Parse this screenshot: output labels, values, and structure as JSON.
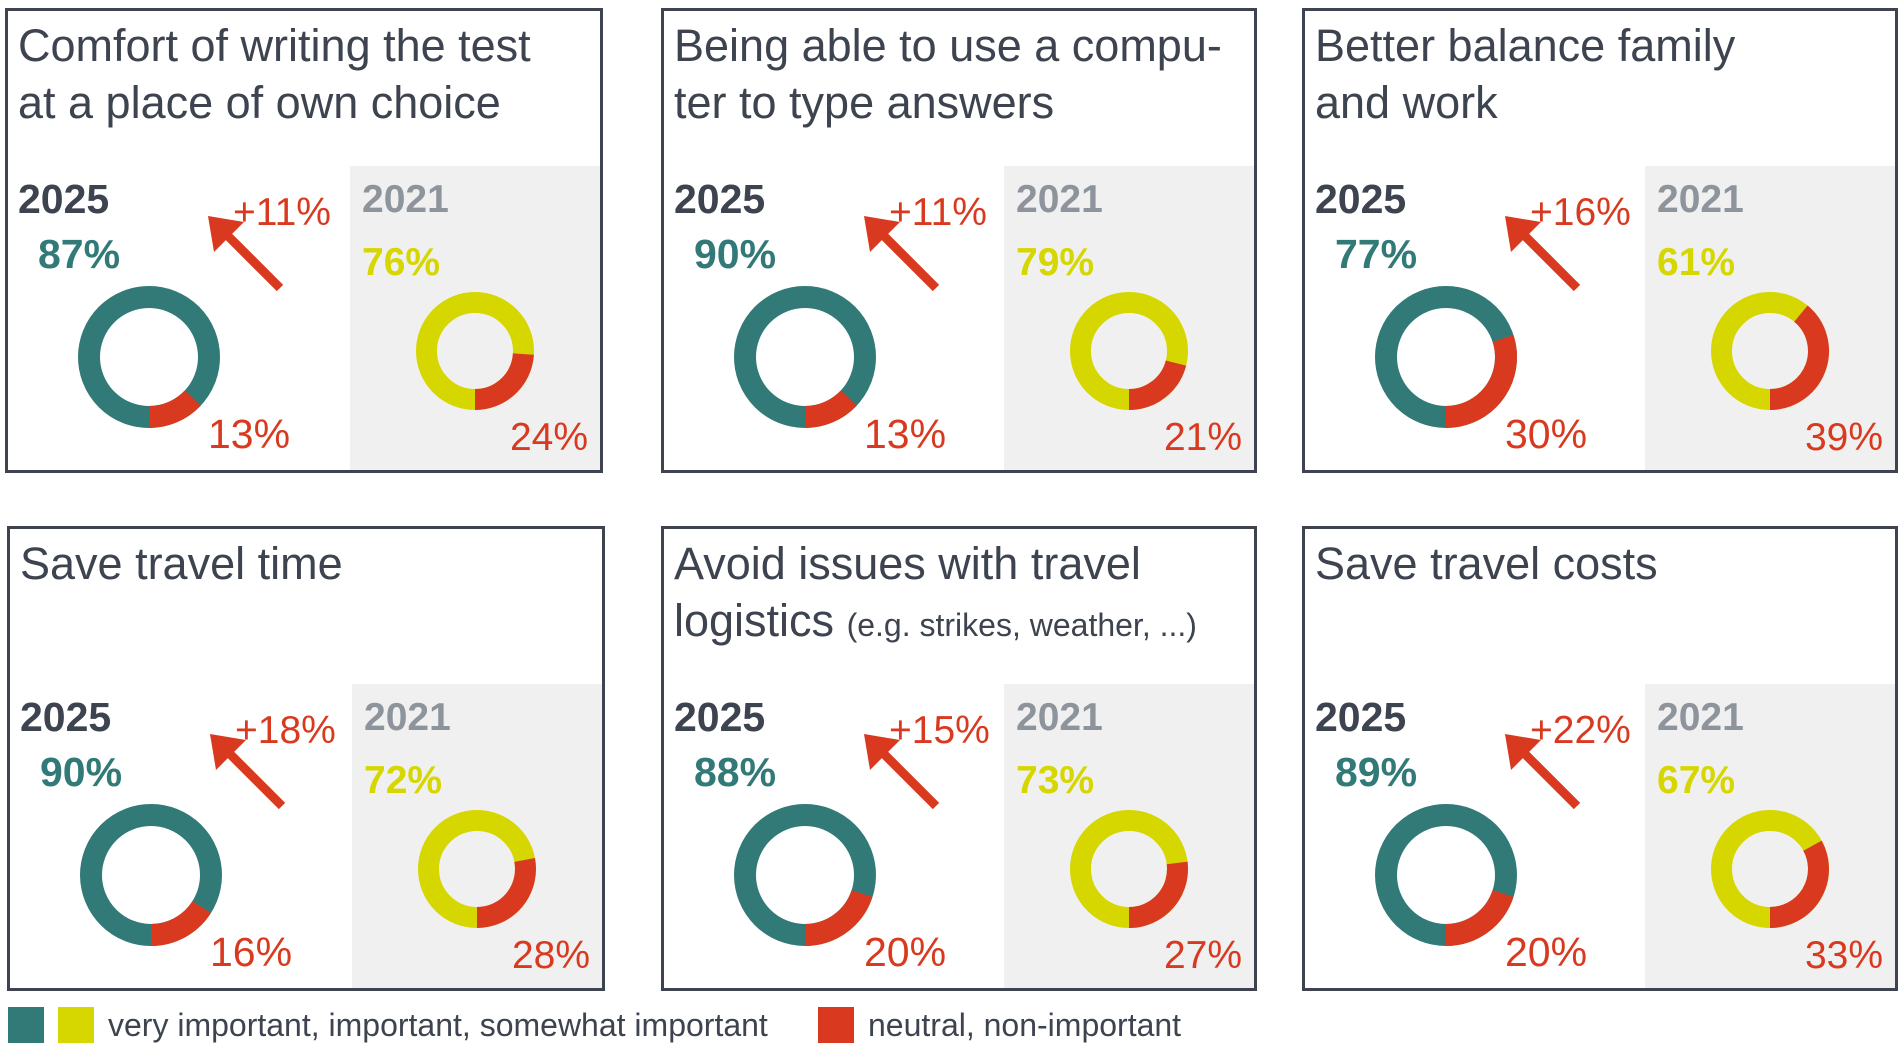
{
  "chart_data": [
    {
      "type": "donut-pair",
      "title": "Comfort of writing the test at a place of own choice",
      "title_lines": [
        "Comfort of writing the test",
        "at a place of own choice"
      ],
      "title_note": "",
      "year_2025": "2025",
      "year_2021": "2021",
      "important_2025": 87,
      "neutral_2025": 13,
      "important_2021": 76,
      "neutral_2021": 24,
      "change": "+11%"
    },
    {
      "type": "donut-pair",
      "title": "Being able to use a computer to type answers",
      "title_lines": [
        "Being able to use a compu-",
        "ter to type answers"
      ],
      "title_note": "",
      "year_2025": "2025",
      "year_2021": "2021",
      "important_2025": 90,
      "neutral_2025": 13,
      "important_2021": 79,
      "neutral_2021": 21,
      "change": "+11%"
    },
    {
      "type": "donut-pair",
      "title": "Better balance family and work",
      "title_lines": [
        "Better balance family",
        "and work"
      ],
      "title_note": "",
      "year_2025": "2025",
      "year_2021": "2021",
      "important_2025": 77,
      "neutral_2025": 30,
      "important_2021": 61,
      "neutral_2021": 39,
      "change": "+16%"
    },
    {
      "type": "donut-pair",
      "title": "Save travel time",
      "title_lines": [
        "Save travel time",
        ""
      ],
      "title_note": "",
      "year_2025": "2025",
      "year_2021": "2021",
      "important_2025": 90,
      "neutral_2025": 16,
      "important_2021": 72,
      "neutral_2021": 28,
      "change": "+18%"
    },
    {
      "type": "donut-pair",
      "title": "Avoid issues with travel logistics (e.g. strikes, weather, ...)",
      "title_lines": [
        "Avoid issues with travel",
        "logistics"
      ],
      "title_note": "(e.g. strikes, weather, ...)",
      "year_2025": "2025",
      "year_2021": "2021",
      "important_2025": 88,
      "neutral_2025": 20,
      "important_2021": 73,
      "neutral_2021": 27,
      "change": "+15%"
    },
    {
      "type": "donut-pair",
      "title": "Save travel costs",
      "title_lines": [
        "Save travel costs",
        ""
      ],
      "title_note": "",
      "year_2025": "2025",
      "year_2021": "2021",
      "important_2025": 89,
      "neutral_2025": 20,
      "important_2021": 67,
      "neutral_2021": 33,
      "change": "+22%"
    }
  ],
  "legend": {
    "important_label": "very important, important, somewhat important",
    "neutral_label": "neutral, non-important"
  },
  "colors": {
    "important_2025": "#317a77",
    "important_2021": "#d6d600",
    "neutral": "#d93a1f",
    "text": "#3d4450",
    "gray_year": "#8e949b",
    "panel_bg_2021": "#f0f0f0"
  }
}
